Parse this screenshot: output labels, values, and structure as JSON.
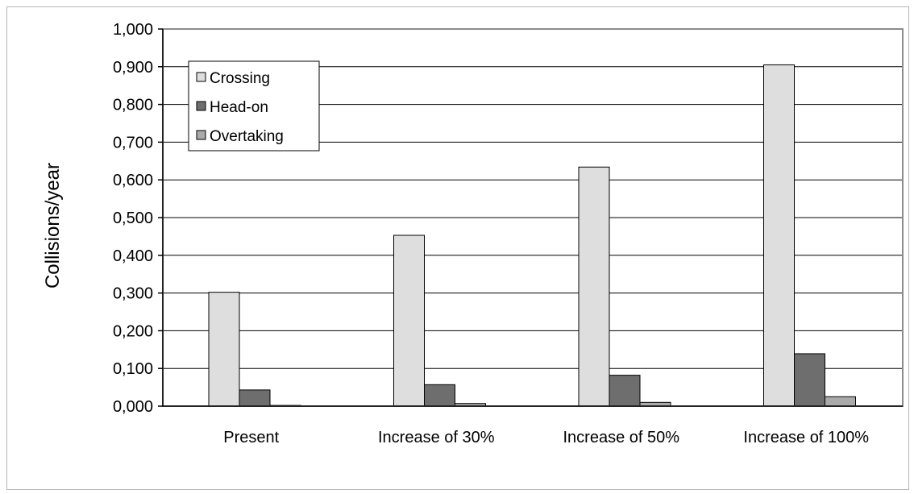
{
  "chart_data": {
    "type": "bar",
    "title": "",
    "xlabel": "",
    "ylabel": "Collisions/year",
    "ylim": [
      0,
      1.0
    ],
    "y_ticks": [
      {
        "value": 0.0,
        "label": "0,000"
      },
      {
        "value": 0.1,
        "label": "0,100"
      },
      {
        "value": 0.2,
        "label": "0,200"
      },
      {
        "value": 0.3,
        "label": "0,300"
      },
      {
        "value": 0.4,
        "label": "0,400"
      },
      {
        "value": 0.5,
        "label": "0,500"
      },
      {
        "value": 0.6,
        "label": "0,600"
      },
      {
        "value": 0.7,
        "label": "0,700"
      },
      {
        "value": 0.8,
        "label": "0,800"
      },
      {
        "value": 0.9,
        "label": "0,900"
      },
      {
        "value": 1.0,
        "label": "1,000"
      }
    ],
    "categories": [
      "Present",
      "Increase of 30%",
      "Increase of 50%",
      "Increase of 100%"
    ],
    "series": [
      {
        "name": "Crossing",
        "color": "#dedede",
        "values": [
          0.302,
          0.453,
          0.634,
          0.905
        ]
      },
      {
        "name": "Head-on",
        "color": "#6e6e6e",
        "values": [
          0.043,
          0.057,
          0.082,
          0.139
        ]
      },
      {
        "name": "Overtaking",
        "color": "#aaaaaa",
        "values": [
          0.002,
          0.007,
          0.01,
          0.025
        ]
      }
    ],
    "grid": true,
    "legend_position": "top-left"
  }
}
